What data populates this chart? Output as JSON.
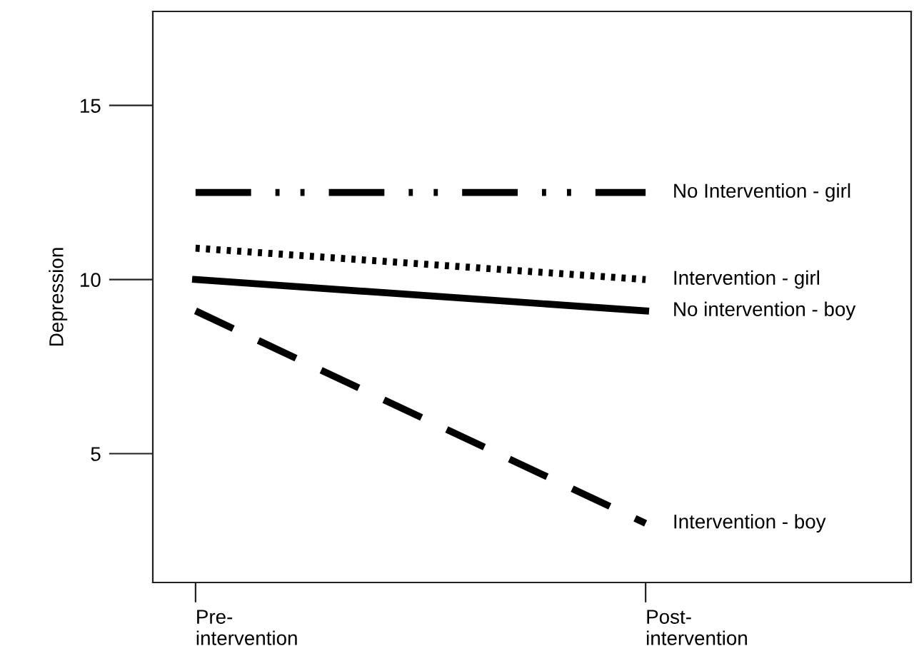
{
  "chart_data": {
    "type": "line",
    "ylabel": "Depression",
    "categories": [
      "Pre-\nintervention",
      "Post-\nintervention"
    ],
    "series": [
      {
        "name": "No Intervention - girl",
        "color": "#000000",
        "values": [
          12.5,
          12.5
        ],
        "line_style": "dashdot"
      },
      {
        "name": "Intervention - girl",
        "color": "#000000",
        "values": [
          10.9,
          10.0
        ],
        "line_style": "dotted"
      },
      {
        "name": "No intervention - boy",
        "color": "#000000",
        "values": [
          10.0,
          9.1
        ],
        "line_style": "solid"
      },
      {
        "name": "Intervention - boy",
        "color": "#000000",
        "values": [
          9.1,
          3.0
        ],
        "line_style": "dashed"
      }
    ],
    "ylim": [
      1.3,
      17.7
    ],
    "yticks": [
      5,
      10,
      15
    ],
    "grid": false,
    "legend": false,
    "marker": "none"
  }
}
